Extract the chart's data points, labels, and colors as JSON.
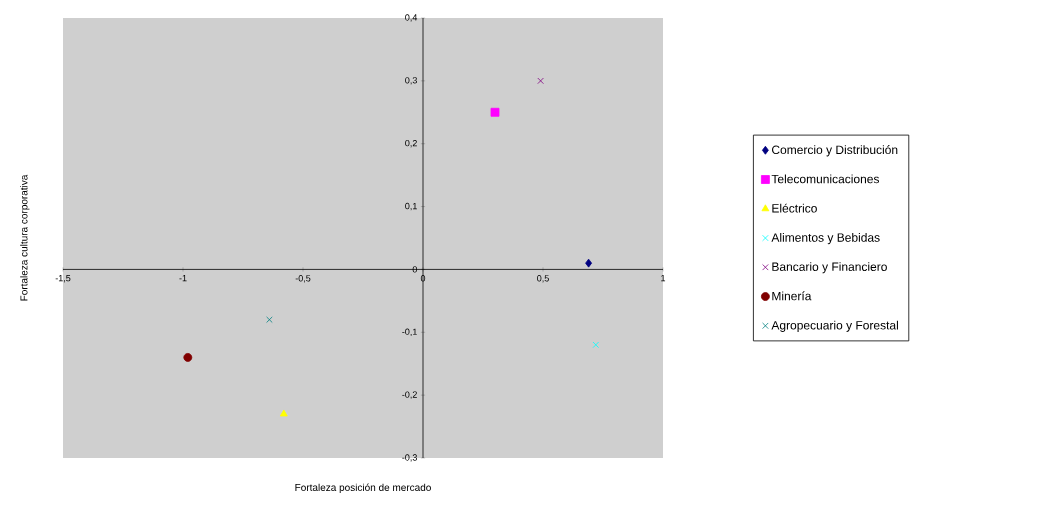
{
  "chart_data": {
    "type": "scatter",
    "xlabel": "Fortaleza posición de mercado",
    "ylabel": "Fortaleza cultura corporativa",
    "xlim": [
      -1.5,
      1
    ],
    "ylim": [
      -0.3,
      0.4
    ],
    "xticks": [
      {
        "value": -1.5,
        "label": "-1,5"
      },
      {
        "value": -1,
        "label": "-1"
      },
      {
        "value": -0.5,
        "label": "-0,5"
      },
      {
        "value": 0,
        "label": "0"
      },
      {
        "value": 0.5,
        "label": "0,5"
      },
      {
        "value": 1,
        "label": "1"
      }
    ],
    "yticks": [
      {
        "value": -0.3,
        "label": "-0,3"
      },
      {
        "value": -0.2,
        "label": "-0,2"
      },
      {
        "value": -0.1,
        "label": "-0,1"
      },
      {
        "value": 0,
        "label": "0"
      },
      {
        "value": 0.1,
        "label": "0,1"
      },
      {
        "value": 0.2,
        "label": "0,2"
      },
      {
        "value": 0.3,
        "label": "0,3"
      },
      {
        "value": 0.4,
        "label": "0,4"
      }
    ],
    "legend": "right",
    "series": [
      {
        "name": "Comercio y Distribución",
        "color": "#000080",
        "marker": "diamond",
        "x": [
          0.69
        ],
        "values": [
          0.01
        ]
      },
      {
        "name": "Telecomunicaciones",
        "color": "#ff00ff",
        "marker": "square",
        "x": [
          0.3
        ],
        "values": [
          0.25
        ]
      },
      {
        "name": "Eléctrico",
        "color": "#ffff00",
        "marker": "triangle",
        "x": [
          -0.58
        ],
        "values": [
          -0.23
        ]
      },
      {
        "name": "Alimentos y Bebidas",
        "color": "#00ffff",
        "marker": "cross",
        "x": [
          0.72
        ],
        "values": [
          -0.12
        ]
      },
      {
        "name": "Bancario y Financiero",
        "color": "#800080",
        "marker": "cross",
        "x": [
          0.49
        ],
        "values": [
          0.3
        ]
      },
      {
        "name": "Minería",
        "color": "#800000",
        "marker": "circle",
        "x": [
          -0.98
        ],
        "values": [
          -0.14
        ]
      },
      {
        "name": "Agropecuario y Forestal",
        "color": "#008080",
        "marker": "cross",
        "x": [
          -0.64
        ],
        "values": [
          -0.08
        ]
      }
    ]
  }
}
